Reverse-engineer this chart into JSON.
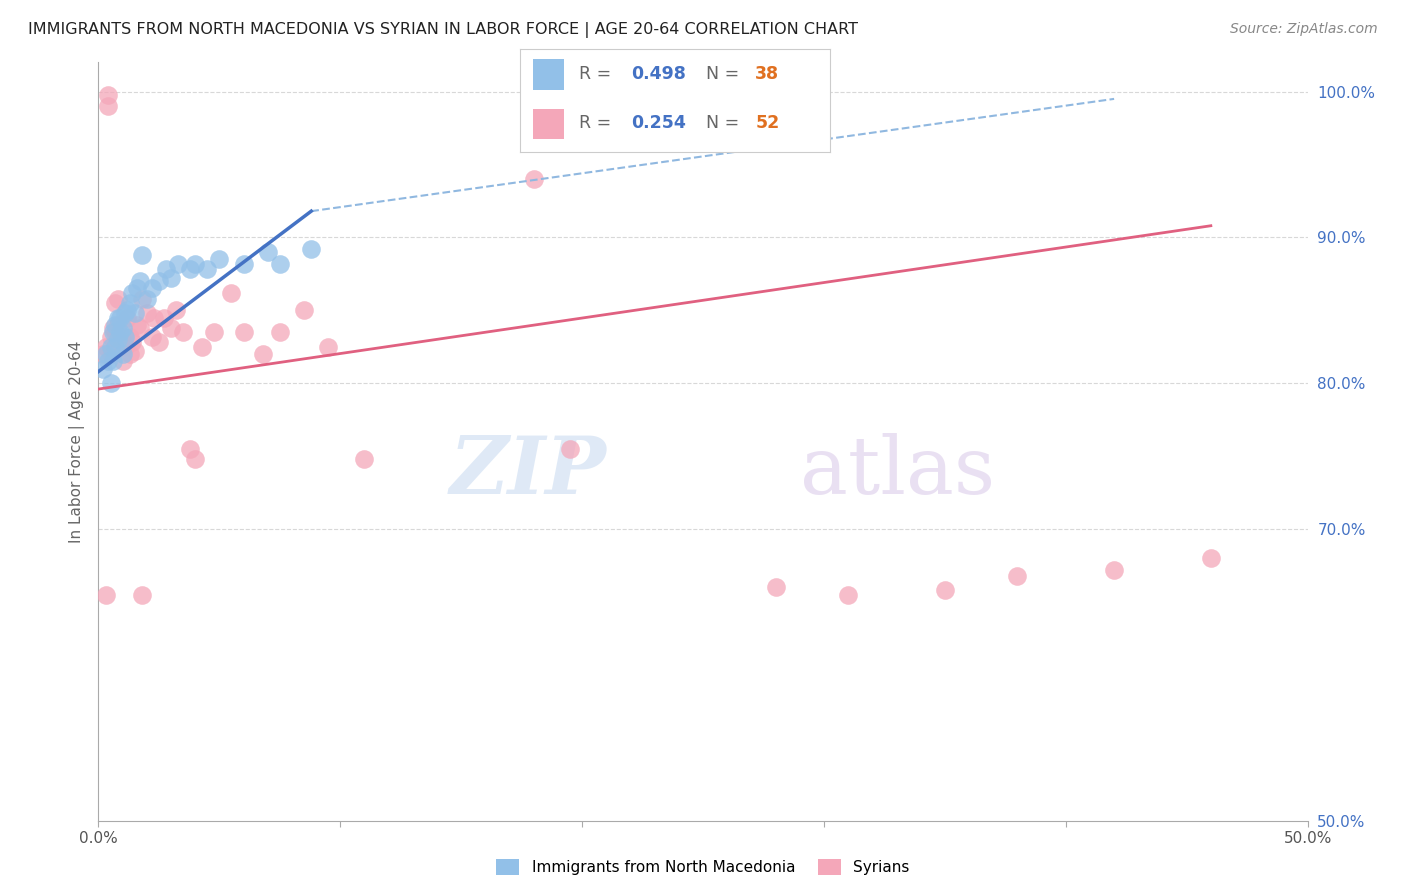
{
  "title": "IMMIGRANTS FROM NORTH MACEDONIA VS SYRIAN IN LABOR FORCE | AGE 20-64 CORRELATION CHART",
  "source": "Source: ZipAtlas.com",
  "ylabel_left": "In Labor Force | Age 20-64",
  "legend_label1": "Immigrants from North Macedonia",
  "legend_label2": "Syrians",
  "legend_r1": "0.498",
  "legend_n1": "38",
  "legend_r2": "0.254",
  "legend_n2": "52",
  "xlim": [
    0.0,
    0.5
  ],
  "ylim": [
    0.5,
    1.02
  ],
  "color_blue": "#92c0e8",
  "color_pink": "#f4a7b9",
  "color_blue_line": "#4472c4",
  "color_pink_line": "#e06080",
  "color_dashed": "#90b8e0",
  "background_color": "#ffffff",
  "grid_color": "#d8d8d8",
  "watermark_zip": "ZIP",
  "watermark_atlas": "atlas",
  "blue_x": [
    0.002,
    0.003,
    0.004,
    0.005,
    0.005,
    0.006,
    0.006,
    0.007,
    0.007,
    0.008,
    0.008,
    0.009,
    0.009,
    0.01,
    0.01,
    0.011,
    0.011,
    0.012,
    0.013,
    0.014,
    0.015,
    0.016,
    0.017,
    0.018,
    0.02,
    0.022,
    0.025,
    0.028,
    0.03,
    0.033,
    0.038,
    0.04,
    0.045,
    0.05,
    0.06,
    0.07,
    0.075,
    0.088
  ],
  "blue_y": [
    0.81,
    0.82,
    0.815,
    0.8,
    0.825,
    0.815,
    0.835,
    0.825,
    0.84,
    0.83,
    0.845,
    0.835,
    0.845,
    0.82,
    0.838,
    0.832,
    0.848,
    0.85,
    0.855,
    0.862,
    0.848,
    0.865,
    0.87,
    0.888,
    0.858,
    0.865,
    0.87,
    0.878,
    0.872,
    0.882,
    0.878,
    0.882,
    0.878,
    0.885,
    0.882,
    0.89,
    0.882,
    0.892
  ],
  "pink_x": [
    0.002,
    0.003,
    0.004,
    0.004,
    0.005,
    0.005,
    0.006,
    0.007,
    0.007,
    0.008,
    0.008,
    0.009,
    0.01,
    0.01,
    0.011,
    0.012,
    0.013,
    0.013,
    0.014,
    0.015,
    0.016,
    0.017,
    0.018,
    0.02,
    0.022,
    0.023,
    0.025,
    0.027,
    0.03,
    0.032,
    0.035,
    0.038,
    0.04,
    0.043,
    0.048,
    0.055,
    0.06,
    0.068,
    0.075,
    0.085,
    0.095,
    0.11,
    0.18,
    0.195,
    0.28,
    0.31,
    0.35,
    0.38,
    0.42,
    0.46,
    0.003,
    0.018
  ],
  "pink_y": [
    0.82,
    0.825,
    0.99,
    0.998,
    0.82,
    0.832,
    0.838,
    0.835,
    0.855,
    0.84,
    0.858,
    0.832,
    0.828,
    0.815,
    0.825,
    0.845,
    0.82,
    0.832,
    0.828,
    0.822,
    0.84,
    0.838,
    0.858,
    0.848,
    0.832,
    0.845,
    0.828,
    0.845,
    0.838,
    0.85,
    0.835,
    0.755,
    0.748,
    0.825,
    0.835,
    0.862,
    0.835,
    0.82,
    0.835,
    0.85,
    0.825,
    0.748,
    0.94,
    0.755,
    0.66,
    0.655,
    0.658,
    0.668,
    0.672,
    0.68,
    0.655,
    0.655
  ],
  "blue_line_x0": 0.0,
  "blue_line_x1": 0.088,
  "blue_line_y0": 0.808,
  "blue_line_y1": 0.918,
  "pink_line_x0": 0.0,
  "pink_line_x1": 0.46,
  "pink_line_y0": 0.796,
  "pink_line_y1": 0.908,
  "dash_line_x0": 0.088,
  "dash_line_x1": 0.42,
  "dash_line_y0": 0.918,
  "dash_line_y1": 0.995
}
